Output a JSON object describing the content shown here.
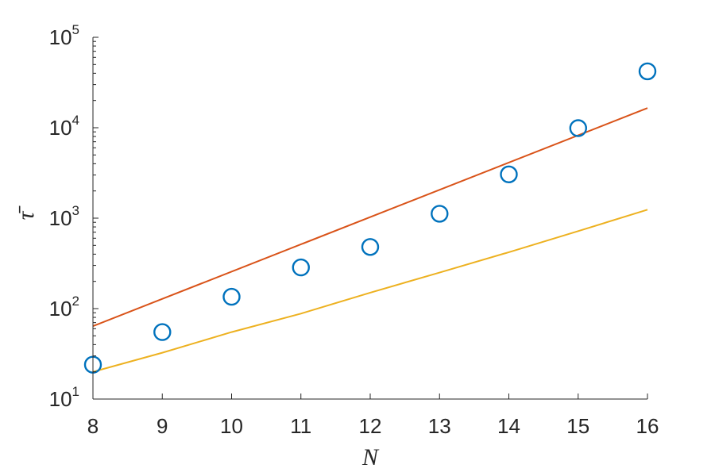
{
  "chart_data": {
    "type": "line",
    "title": "",
    "xlabel": "N",
    "ylabel": "τ̄",
    "y_scale": "log",
    "xlim": [
      8,
      16
    ],
    "ylim": [
      10,
      100000
    ],
    "x_ticks": [
      "8",
      "9",
      "10",
      "11",
      "12",
      "13",
      "14",
      "15",
      "16"
    ],
    "y_ticks": [
      {
        "base": "10",
        "exp": "1",
        "value": 10
      },
      {
        "base": "10",
        "exp": "2",
        "value": 100
      },
      {
        "base": "10",
        "exp": "3",
        "value": 1000
      },
      {
        "base": "10",
        "exp": "4",
        "value": 10000
      },
      {
        "base": "10",
        "exp": "5",
        "value": 100000
      }
    ],
    "grid": false,
    "series": [
      {
        "kind": "scatter",
        "marker": "open-circle",
        "color": "#0072BD",
        "x": [
          8,
          9,
          10,
          11,
          12,
          13,
          14,
          15,
          16
        ],
        "y": [
          24,
          55,
          135,
          285,
          480,
          1120,
          3050,
          9900,
          42000
        ]
      },
      {
        "kind": "line",
        "color": "#D95319",
        "x": [
          8,
          16
        ],
        "y": [
          64,
          16500
        ]
      },
      {
        "kind": "line",
        "color": "#EDB120",
        "x": [
          8,
          9,
          10,
          11,
          12,
          13,
          14,
          15,
          16
        ],
        "y": [
          20,
          32.5,
          55,
          88,
          150,
          250,
          420,
          720,
          1240
        ]
      }
    ]
  }
}
